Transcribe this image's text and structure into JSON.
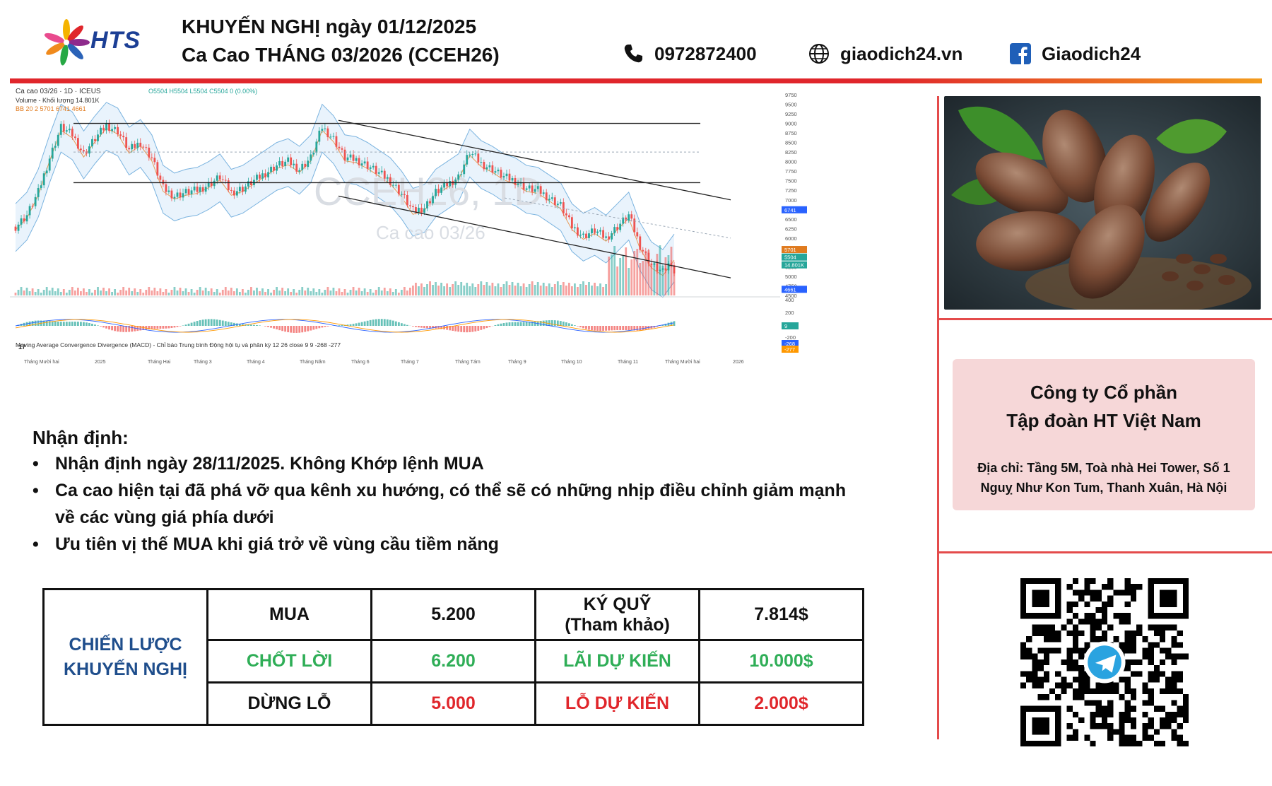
{
  "header": {
    "logo_text": "HTS",
    "title_line1": "KHUYẾN NGHỊ ngày 01/12/2025",
    "title_line2": "Ca Cao THÁNG 03/2026 (CCEH26)",
    "phone": "0972872400",
    "website": "giaodich24.vn",
    "facebook": "Giaodich24",
    "icons": [
      "phone-icon",
      "globe-icon",
      "facebook-icon"
    ]
  },
  "colors": {
    "brand_blue": "#1c3f95",
    "accent_red": "#e0262b",
    "accent_orange": "#f39c1e",
    "profit_green": "#2fae57",
    "company_box": "#f6d7d8",
    "candle_up": "#26a69a",
    "candle_down": "#ef5350"
  },
  "chart_data": {
    "type": "candlestick",
    "symbol_line": "Ca cao 03/26 · 1D · ICEUS",
    "ohlc_line": "O5504 H5504 L5504 C5504 0 (0.00%)",
    "volume_line": "Volume - Khối lượng  14.801K",
    "bb_line": "BB 20 2  5701  6741  4661",
    "watermark_symbol": "CCEH26, 1D",
    "watermark_name": "Ca cao 03/26",
    "macd_line": "Moving Average Convergence Divergence (MACD) - Chỉ báo Trung bình Động hội tụ và phân kỳ  12 26 close 9   9  -268  -277",
    "x_tick_labels": [
      "Tháng Mười hai",
      "2025",
      "Tháng Hai",
      "Tháng 3",
      "Tháng 4",
      "Tháng Năm",
      "Tháng 6",
      "Tháng 7",
      "Tháng Tám",
      "Tháng 9",
      "Tháng 10",
      "Tháng 11",
      "Tháng Mười hai",
      "2026"
    ],
    "y_ticks": [
      4500,
      4750,
      5000,
      5250,
      5500,
      5750,
      6000,
      6250,
      6500,
      6750,
      7000,
      7250,
      7500,
      7750,
      8000,
      8250,
      8500,
      8750,
      9000,
      9250,
      9500,
      9750
    ],
    "ylim": [
      4500,
      9750
    ],
    "price_labels": [
      "6741",
      "5701",
      "5504",
      "14.801K",
      "4661"
    ],
    "macd_ticks": [
      400,
      200,
      -200
    ],
    "macd_labels": [
      "9",
      "-268",
      "-277"
    ],
    "close_series": [
      6300,
      6600,
      7200,
      8100,
      8900,
      8700,
      8200,
      8600,
      8950,
      8800,
      8300,
      8500,
      8100,
      7300,
      7100,
      7200,
      7250,
      7400,
      7600,
      7200,
      7300,
      7500,
      7700,
      7900,
      8000,
      7800,
      8100,
      8900,
      8600,
      8100,
      8050,
      7900,
      7700,
      7500,
      7150,
      6700,
      6800,
      7200,
      7400,
      7600,
      8250,
      7950,
      7800,
      7600,
      7500,
      7300,
      7250,
      7050,
      6850,
      6300,
      6050,
      6200,
      6000,
      6300,
      6600,
      5800,
      5300,
      5100,
      5504
    ],
    "horizontal_levels": [
      9000,
      7450
    ],
    "dashed_level": 8250
  },
  "analysis": {
    "title": "Nhận định:",
    "bullets": [
      "Nhận định ngày 28/11/2025. Không Khớp lệnh MUA",
      "Ca cao hiện tại đã phá vỡ qua kênh xu hướng, có thể sẽ có những nhịp điều chỉnh giảm mạnh",
      "Ưu tiên vị thế MUA khi giá trở về vùng cầu tiềm năng"
    ],
    "bullet2_cont": "về các vùng giá phía dưới"
  },
  "strategy": {
    "label_line1": "CHIẾN LƯỢC",
    "label_line2": "KHUYẾN NGHỊ",
    "rows": [
      {
        "action": "MUA",
        "price": "5.200",
        "metric_l1": "KÝ QUỸ",
        "metric_l2": "(Tham khảo)",
        "amount": "7.814$"
      },
      {
        "action": "CHỐT LỜI",
        "price": "6.200",
        "metric_l1": "LÃI DỰ KIẾN",
        "metric_l2": "",
        "amount": "10.000$"
      },
      {
        "action": "DỪNG LỖ",
        "price": "5.000",
        "metric_l1": "LỖ DỰ KIẾN",
        "metric_l2": "",
        "amount": "2.000$"
      }
    ]
  },
  "company": {
    "name_line1": "Công ty Cổ phần",
    "name_line2": "Tập đoàn HT Việt Nam",
    "address_line1": "Địa chỉ: Tầng 5M, Toà nhà Hei Tower, Số 1",
    "address_line2": "Nguỵ Như Kon Tum, Thanh Xuân, Hà Nội"
  }
}
